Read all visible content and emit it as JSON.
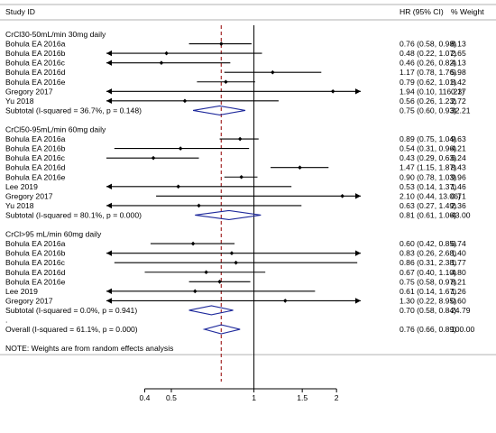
{
  "chart_data": {
    "type": "forest",
    "x_scale": "log",
    "null_line": 1,
    "overall_line": 0.76,
    "header": {
      "study": "Study ID",
      "effect": "HR (95% CI)",
      "weight": "% Weight"
    },
    "ticks": [
      {
        "value": 0.4,
        "label": "0.4"
      },
      {
        "value": 0.5,
        "label": "0.5"
      },
      {
        "value": 1,
        "label": "1"
      },
      {
        "value": 1.5,
        "label": "1.5"
      },
      {
        "value": 2,
        "label": "2"
      }
    ],
    "rows": [
      {
        "kind": "group",
        "label": "CrCl30-50mL/min 30mg daily"
      },
      {
        "kind": "study",
        "label": "Bohula EA 2016a",
        "hr": 0.76,
        "lo": 0.58,
        "hi": 0.98,
        "ci_text": "0.76 (0.58, 0.98)",
        "weight": "8.13"
      },
      {
        "kind": "study",
        "label": "Bohula EA 2016b",
        "hr": 0.48,
        "lo": 0.22,
        "hi": 1.07,
        "ci_text": "0.48 (0.22, 1.07)",
        "weight": "2.65"
      },
      {
        "kind": "study",
        "label": "Bohula EA 2016c",
        "hr": 0.46,
        "lo": 0.26,
        "hi": 0.82,
        "ci_text": "0.46 (0.26, 0.82)",
        "weight": "4.13"
      },
      {
        "kind": "study",
        "label": "Bohula EA 2016d",
        "hr": 1.17,
        "lo": 0.78,
        "hi": 1.76,
        "ci_text": "1.17 (0.78, 1.76)",
        "weight": "5.98"
      },
      {
        "kind": "study",
        "label": "Bohula EA 2016e",
        "hr": 0.79,
        "lo": 0.62,
        "hi": 1.01,
        "ci_text": "0.79 (0.62, 1.01)",
        "weight": "8.42"
      },
      {
        "kind": "study",
        "label": "Gregory 2017",
        "hr": 1.94,
        "lo": 0.1,
        "hi": 116.23,
        "ci_text": "1.94 (0.10, 116.23)",
        "weight": "0.17"
      },
      {
        "kind": "study",
        "label": "Yu 2018",
        "hr": 0.56,
        "lo": 0.26,
        "hi": 1.23,
        "ci_text": "0.56 (0.26, 1.23)",
        "weight": "2.72"
      },
      {
        "kind": "subtotal",
        "label": "Subtotal  (I-squared = 36.7%, p = 0.148)",
        "hr": 0.75,
        "lo": 0.6,
        "hi": 0.93,
        "ci_text": "0.75 (0.60, 0.93)",
        "weight": "32.21"
      },
      {
        "kind": "blank"
      },
      {
        "kind": "group",
        "label": "CrCl50-95mL/min 60mg daily"
      },
      {
        "kind": "study",
        "label": "Bohula EA 2016a",
        "hr": 0.89,
        "lo": 0.75,
        "hi": 1.04,
        "ci_text": "0.89 (0.75, 1.04)",
        "weight": "9.63"
      },
      {
        "kind": "study",
        "label": "Bohula EA 2016b",
        "hr": 0.54,
        "lo": 0.31,
        "hi": 0.96,
        "ci_text": "0.54 (0.31, 0.96)",
        "weight": "4.21"
      },
      {
        "kind": "study",
        "label": "Bohula EA 2016c",
        "hr": 0.43,
        "lo": 0.29,
        "hi": 0.63,
        "ci_text": "0.43 (0.29, 0.63)",
        "weight": "6.24"
      },
      {
        "kind": "study",
        "label": "Bohula EA 2016d",
        "hr": 1.47,
        "lo": 1.15,
        "hi": 1.87,
        "ci_text": "1.47 (1.15, 1.87)",
        "weight": "8.43"
      },
      {
        "kind": "study",
        "label": "Bohula EA 2016e",
        "hr": 0.9,
        "lo": 0.78,
        "hi": 1.03,
        "ci_text": "0.90 (0.78, 1.03)",
        "weight": "9.96"
      },
      {
        "kind": "study",
        "label": "Lee 2019",
        "hr": 0.53,
        "lo": 0.14,
        "hi": 1.37,
        "ci_text": "0.53 (0.14, 1.37)",
        "weight": "1.46"
      },
      {
        "kind": "study",
        "label": "Gregory 2017",
        "hr": 2.1,
        "lo": 0.44,
        "hi": 13.06,
        "ci_text": "2.10 (0.44, 13.06)",
        "weight": "0.71"
      },
      {
        "kind": "study",
        "label": "Yu 2018",
        "hr": 0.63,
        "lo": 0.27,
        "hi": 1.49,
        "ci_text": "0.63 (0.27, 1.49)",
        "weight": "2.36"
      },
      {
        "kind": "subtotal",
        "label": "Subtotal  (I-squared = 80.1%, p = 0.000)",
        "hr": 0.81,
        "lo": 0.61,
        "hi": 1.06,
        "ci_text": "0.81 (0.61, 1.06)",
        "weight": "43.00"
      },
      {
        "kind": "blank"
      },
      {
        "kind": "group",
        "label": "CrCl>95 mL/min 60mg daily"
      },
      {
        "kind": "study",
        "label": "Bohula EA 2016a",
        "hr": 0.6,
        "lo": 0.42,
        "hi": 0.85,
        "ci_text": "0.60 (0.42, 0.85)",
        "weight": "6.74"
      },
      {
        "kind": "study",
        "label": "Bohula EA 2016b",
        "hr": 0.83,
        "lo": 0.26,
        "hi": 2.68,
        "ci_text": "0.83 (0.26, 2.68)",
        "weight": "1.40"
      },
      {
        "kind": "study",
        "label": "Bohula EA 2016c",
        "hr": 0.86,
        "lo": 0.31,
        "hi": 2.38,
        "ci_text": "0.86 (0.31, 2.38)",
        "weight": "1.77"
      },
      {
        "kind": "study",
        "label": "Bohula EA 2016d",
        "hr": 0.67,
        "lo": 0.4,
        "hi": 1.1,
        "ci_text": "0.67 (0.40, 1.10)",
        "weight": "4.80"
      },
      {
        "kind": "study",
        "label": "Bohula EA 2016e",
        "hr": 0.75,
        "lo": 0.58,
        "hi": 0.97,
        "ci_text": "0.75 (0.58, 0.97)",
        "weight": "8.21"
      },
      {
        "kind": "study",
        "label": "Lee 2019",
        "hr": 0.61,
        "lo": 0.14,
        "hi": 1.67,
        "ci_text": "0.61 (0.14, 1.67)",
        "weight": "1.26"
      },
      {
        "kind": "study",
        "label": "Gregory 2017",
        "hr": 1.3,
        "lo": 0.22,
        "hi": 8.95,
        "ci_text": "1.30 (0.22, 8.95)",
        "weight": "0.60"
      },
      {
        "kind": "subtotal",
        "label": "Subtotal  (I-squared = 0.0%, p = 0.941)",
        "hr": 0.7,
        "lo": 0.58,
        "hi": 0.84,
        "ci_text": "0.70 (0.58, 0.84)",
        "weight": "24.79"
      },
      {
        "kind": "dot",
        "label": "."
      },
      {
        "kind": "overall",
        "label": "Overall  (I-squared = 61.1%, p = 0.000)",
        "hr": 0.76,
        "lo": 0.66,
        "hi": 0.89,
        "ci_text": "0.76 (0.66, 0.89)",
        "weight": "100.00"
      },
      {
        "kind": "blank"
      },
      {
        "kind": "note",
        "label": "NOTE: Weights are from random effects analysis"
      }
    ],
    "colors": {
      "ink": "#000000",
      "diamond": "#1f2a9c",
      "dashed_line": "#a52a2a",
      "rule": "#b0b0b0"
    }
  }
}
